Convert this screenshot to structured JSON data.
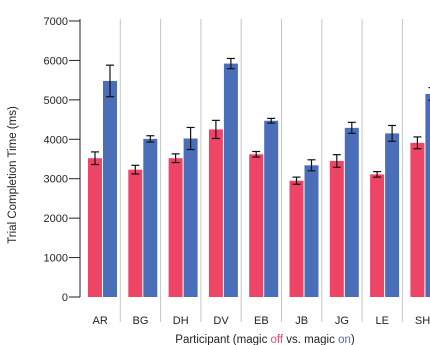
{
  "chart_data": {
    "type": "bar",
    "ylabel": "Trial Completion Time (ms)",
    "xlabel_parts": [
      {
        "text": "Participant (magic ",
        "color": "#222222"
      },
      {
        "text": "off",
        "color": "#ee4466"
      },
      {
        "text": " vs. magic ",
        "color": "#222222"
      },
      {
        "text": "on",
        "color": "#4a6fb8"
      },
      {
        "text": ")",
        "color": "#222222"
      }
    ],
    "ylim": [
      0,
      7000
    ],
    "yticks": [
      0,
      1000,
      2000,
      3000,
      4000,
      5000,
      6000,
      7000
    ],
    "categories": [
      "AR",
      "BG",
      "DH",
      "DV",
      "EB",
      "JB",
      "JG",
      "LE",
      "SH"
    ],
    "series": [
      {
        "key": "off",
        "color": "#ee4466",
        "values": [
          3520,
          3230,
          3520,
          4250,
          3620,
          2950,
          3450,
          3110,
          3910
        ],
        "errors": [
          160,
          110,
          110,
          230,
          70,
          90,
          160,
          70,
          150
        ]
      },
      {
        "key": "on",
        "color": "#4a6fb8",
        "values": [
          5480,
          4010,
          4020,
          5920,
          4470,
          3340,
          4290,
          4150,
          5150
        ],
        "errors": [
          400,
          80,
          280,
          130,
          60,
          140,
          140,
          200,
          160
        ]
      }
    ],
    "grid": false,
    "separators": true
  }
}
